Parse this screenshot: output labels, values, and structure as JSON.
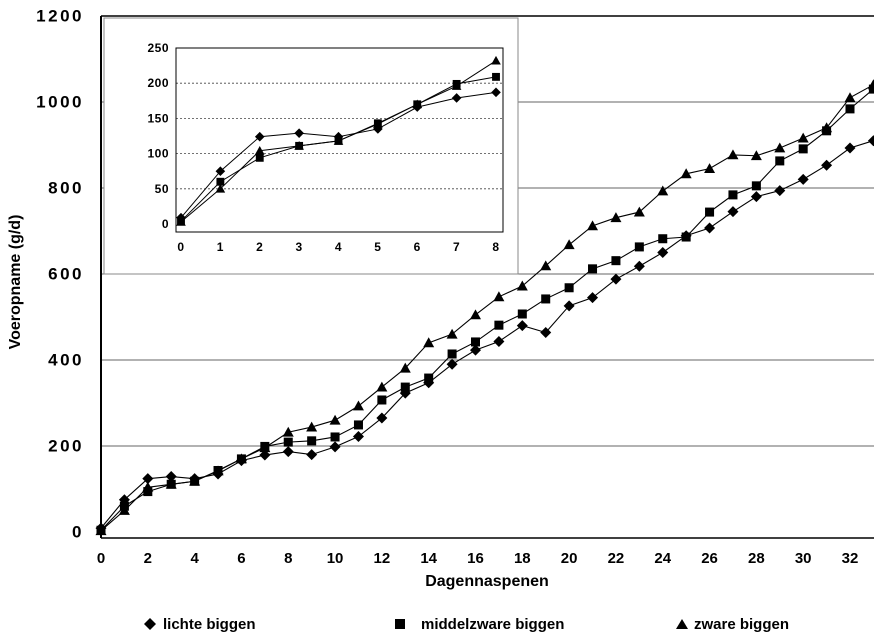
{
  "chart_data": [
    {
      "type": "line",
      "xlabel": "Dagennaspenen",
      "ylabel": "Voeropname (g/d)",
      "x": [
        0,
        1,
        2,
        3,
        4,
        5,
        6,
        7,
        8,
        9,
        10,
        11,
        12,
        13,
        14,
        15,
        16,
        17,
        18,
        19,
        20,
        21,
        22,
        23,
        24,
        25,
        26,
        27,
        28,
        29,
        30,
        31,
        32,
        33
      ],
      "xlim": [
        0,
        33
      ],
      "ylim": [
        0,
        1200
      ],
      "xticks": [
        0,
        2,
        4,
        6,
        8,
        10,
        12,
        14,
        16,
        18,
        20,
        22,
        24,
        26,
        28,
        30,
        32
      ],
      "yticks": [
        0,
        200,
        400,
        600,
        800,
        1000,
        1200
      ],
      "grid": true,
      "legend": "bottom",
      "series": [
        {
          "name": "lichte biggen",
          "marker": "diamond",
          "color": "#000000",
          "values": [
            9,
            75,
            124,
            129,
            124,
            135,
            166,
            179,
            187,
            180,
            198,
            222,
            265,
            323,
            347,
            390,
            423,
            443,
            480,
            464,
            526,
            545,
            588,
            618,
            650,
            689,
            707,
            745,
            780,
            794,
            820,
            853,
            893,
            910
          ]
        },
        {
          "name": "middelzware biggen",
          "marker": "square",
          "color": "#000000",
          "values": [
            4,
            60,
            94,
            111,
            118,
            143,
            170,
            199,
            209,
            212,
            221,
            249,
            307,
            337,
            358,
            414,
            442,
            481,
            507,
            542,
            568,
            612,
            631,
            663,
            682,
            686,
            744,
            784,
            805,
            863,
            891,
            933,
            984,
            1030
          ]
        },
        {
          "name": "zware biggen",
          "marker": "triangle",
          "color": "#000000",
          "values": [
            3,
            50,
            104,
            111,
            118,
            142,
            170,
            196,
            232,
            244,
            260,
            293,
            337,
            381,
            440,
            460,
            505,
            547,
            572,
            619,
            668,
            712,
            731,
            744,
            793,
            833,
            845,
            877,
            875,
            893,
            916,
            940,
            1010,
            1040
          ]
        }
      ]
    },
    {
      "type": "line",
      "placement": "top-left",
      "x": [
        0,
        1,
        2,
        3,
        4,
        5,
        6,
        7,
        8
      ],
      "xlim": [
        0,
        8
      ],
      "ylim": [
        0,
        250
      ],
      "xticks": [
        0,
        1,
        2,
        3,
        4,
        5,
        6,
        7,
        8
      ],
      "yticks": [
        0,
        50,
        100,
        150,
        200,
        250
      ],
      "grid": true,
      "series": [
        {
          "marker": "diamond",
          "color": "#000000",
          "values": [
            9,
            75,
            124,
            129,
            124,
            135,
            166,
            179,
            187
          ]
        },
        {
          "marker": "square",
          "color": "#000000",
          "values": [
            4,
            60,
            94,
            111,
            118,
            143,
            170,
            199,
            209
          ]
        },
        {
          "marker": "triangle",
          "color": "#000000",
          "values": [
            3,
            50,
            104,
            111,
            118,
            142,
            170,
            196,
            232
          ]
        }
      ]
    }
  ]
}
